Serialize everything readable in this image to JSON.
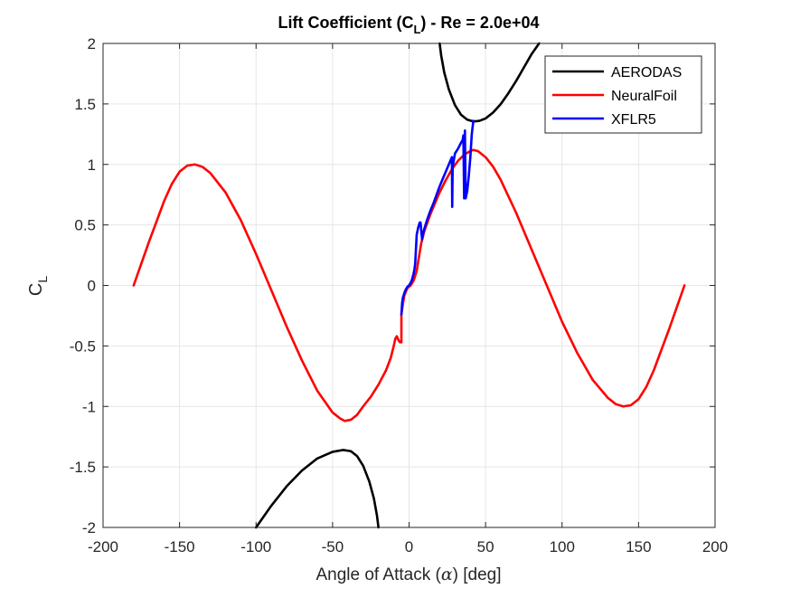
{
  "chart_data": {
    "type": "line",
    "title": {
      "main": "Lift Coefficient (C",
      "sub": "L",
      "rest": ") - Re = 2.0e+04"
    },
    "xlabel": {
      "pre": "Angle of Attack (",
      "symbol": "α",
      "post": ") [deg]"
    },
    "ylabel": {
      "main": "C",
      "sub": "L"
    },
    "xlim": [
      -200,
      200
    ],
    "ylim": [
      -2,
      2
    ],
    "xticks": [
      -200,
      -150,
      -100,
      -50,
      0,
      50,
      100,
      150,
      200
    ],
    "yticks": [
      -2,
      -1.5,
      -1,
      -0.5,
      0,
      0.5,
      1,
      1.5,
      2
    ],
    "xtick_labels": [
      "-200",
      "-150",
      "-100",
      "-50",
      "0",
      "50",
      "100",
      "150",
      "200"
    ],
    "ytick_labels": [
      "-2",
      "-1.5",
      "-1",
      "-0.5",
      "0",
      "0.5",
      "1",
      "1.5",
      "2"
    ],
    "grid": true,
    "legend_position": "top-right",
    "series": [
      {
        "name": "AERODAS",
        "color": "#000000",
        "segments": [
          [
            [
              20,
              2.0
            ],
            [
              21,
              1.9
            ],
            [
              23,
              1.76
            ],
            [
              26,
              1.62
            ],
            [
              30,
              1.49
            ],
            [
              34,
              1.41
            ],
            [
              38,
              1.37
            ],
            [
              42,
              1.355
            ],
            [
              46,
              1.36
            ],
            [
              50,
              1.38
            ],
            [
              55,
              1.43
            ],
            [
              60,
              1.5
            ],
            [
              65,
              1.59
            ],
            [
              70,
              1.69
            ],
            [
              75,
              1.8
            ],
            [
              80,
              1.91
            ],
            [
              85,
              2.0
            ]
          ],
          [
            [
              -100,
              -2.0
            ],
            [
              -90,
              -1.82
            ],
            [
              -80,
              -1.66
            ],
            [
              -70,
              -1.53
            ],
            [
              -60,
              -1.43
            ],
            [
              -50,
              -1.375
            ],
            [
              -43,
              -1.36
            ],
            [
              -38,
              -1.37
            ],
            [
              -34,
              -1.41
            ],
            [
              -30,
              -1.49
            ],
            [
              -26,
              -1.62
            ],
            [
              -23,
              -1.76
            ],
            [
              -21,
              -1.9
            ],
            [
              -20,
              -2.0
            ]
          ]
        ]
      },
      {
        "name": "NeuralFoil",
        "color": "#ff0000",
        "segments": [
          [
            [
              -180,
              0.0
            ],
            [
              -175,
              0.18
            ],
            [
              -170,
              0.36
            ],
            [
              -165,
              0.53
            ],
            [
              -160,
              0.7
            ],
            [
              -155,
              0.84
            ],
            [
              -150,
              0.94
            ],
            [
              -145,
              0.99
            ],
            [
              -140,
              1.0
            ],
            [
              -135,
              0.98
            ],
            [
              -130,
              0.93
            ],
            [
              -120,
              0.77
            ],
            [
              -110,
              0.54
            ],
            [
              -100,
              0.26
            ],
            [
              -90,
              -0.04
            ],
            [
              -80,
              -0.34
            ],
            [
              -70,
              -0.62
            ],
            [
              -60,
              -0.87
            ],
            [
              -50,
              -1.05
            ],
            [
              -45,
              -1.1
            ],
            [
              -42,
              -1.12
            ],
            [
              -38,
              -1.11
            ],
            [
              -34,
              -1.07
            ],
            [
              -30,
              -1.0
            ],
            [
              -25,
              -0.92
            ],
            [
              -20,
              -0.82
            ],
            [
              -15,
              -0.7
            ],
            [
              -12,
              -0.6
            ],
            [
              -10,
              -0.5
            ],
            [
              -9,
              -0.44
            ],
            [
              -8,
              -0.42
            ],
            [
              -7,
              -0.45
            ],
            [
              -6,
              -0.47
            ],
            [
              -5,
              -0.47
            ],
            [
              -5,
              -0.24
            ],
            [
              -4,
              -0.15
            ],
            [
              -3,
              -0.08
            ],
            [
              -1,
              -0.02
            ],
            [
              1,
              0.0
            ],
            [
              3,
              0.04
            ],
            [
              5,
              0.12
            ],
            [
              6,
              0.2
            ],
            [
              8,
              0.35
            ],
            [
              10,
              0.45
            ],
            [
              12,
              0.52
            ],
            [
              14,
              0.59
            ],
            [
              17,
              0.68
            ],
            [
              20,
              0.77
            ],
            [
              24,
              0.87
            ],
            [
              28,
              0.96
            ],
            [
              32,
              1.03
            ],
            [
              36,
              1.08
            ],
            [
              40,
              1.11
            ],
            [
              42,
              1.12
            ],
            [
              45,
              1.11
            ],
            [
              50,
              1.06
            ],
            [
              55,
              0.98
            ],
            [
              60,
              0.87
            ],
            [
              70,
              0.6
            ],
            [
              80,
              0.3
            ],
            [
              90,
              0.0
            ],
            [
              100,
              -0.3
            ],
            [
              110,
              -0.56
            ],
            [
              120,
              -0.78
            ],
            [
              130,
              -0.93
            ],
            [
              135,
              -0.98
            ],
            [
              140,
              -1.0
            ],
            [
              145,
              -0.99
            ],
            [
              150,
              -0.94
            ],
            [
              155,
              -0.84
            ],
            [
              160,
              -0.7
            ],
            [
              165,
              -0.53
            ],
            [
              170,
              -0.36
            ],
            [
              175,
              -0.18
            ],
            [
              180,
              0.0
            ]
          ]
        ]
      },
      {
        "name": "XFLR5",
        "color": "#0000ff",
        "segments": [
          [
            [
              -5,
              -0.24
            ],
            [
              -4.5,
              -0.14
            ],
            [
              -4,
              -0.1
            ],
            [
              -3,
              -0.06
            ],
            [
              -2,
              -0.03
            ],
            [
              -1,
              -0.01
            ],
            [
              0,
              0.0
            ],
            [
              1,
              0.02
            ],
            [
              2,
              0.05
            ],
            [
              3,
              0.1
            ],
            [
              3.5,
              0.13
            ],
            [
              4,
              0.18
            ],
            [
              4.5,
              0.3
            ],
            [
              5,
              0.42
            ],
            [
              6,
              0.48
            ],
            [
              7,
              0.52
            ],
            [
              7.5,
              0.52
            ],
            [
              8,
              0.45
            ],
            [
              8.5,
              0.38
            ],
            [
              9,
              0.42
            ],
            [
              10,
              0.47
            ],
            [
              12,
              0.55
            ],
            [
              14,
              0.62
            ],
            [
              16,
              0.68
            ],
            [
              18,
              0.75
            ],
            [
              20,
              0.82
            ],
            [
              22,
              0.88
            ],
            [
              24,
              0.94
            ],
            [
              26,
              1.0
            ],
            [
              27,
              1.03
            ],
            [
              28,
              1.06
            ],
            [
              28.2,
              0.65
            ],
            [
              28.5,
              0.98
            ],
            [
              30,
              1.09
            ],
            [
              32,
              1.13
            ],
            [
              34,
              1.18
            ],
            [
              35,
              1.2
            ],
            [
              35.5,
              1.24
            ],
            [
              36,
              0.72
            ],
            [
              36.5,
              1.28
            ],
            [
              37,
              0.72
            ],
            [
              38,
              0.78
            ],
            [
              39,
              0.9
            ],
            [
              40,
              1.05
            ],
            [
              41,
              1.25
            ],
            [
              42,
              1.36
            ]
          ]
        ]
      }
    ]
  }
}
